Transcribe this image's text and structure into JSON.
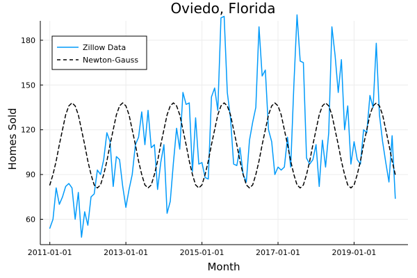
{
  "chart_data": {
    "type": "line",
    "title": "Oviedo, Florida",
    "xlabel": "Month",
    "ylabel": "Homes Sold",
    "xlim": [
      "2010-10-01",
      "2020-06-01"
    ],
    "ylim": [
      43,
      193
    ],
    "xticks": [
      {
        "value": "2011-01-01",
        "label": "2011-01-01"
      },
      {
        "value": "2013-01-01",
        "label": "2013-01-01"
      },
      {
        "value": "2015-01-01",
        "label": "2015-01-01"
      },
      {
        "value": "2017-01-01",
        "label": "2017-01-01"
      },
      {
        "value": "2019-01-01",
        "label": "2019-01-01"
      }
    ],
    "yticks": [
      {
        "value": 60,
        "label": "60"
      },
      {
        "value": 90,
        "label": "90"
      },
      {
        "value": 120,
        "label": "120"
      },
      {
        "value": 150,
        "label": "150"
      },
      {
        "value": 180,
        "label": "180"
      }
    ],
    "grid": true,
    "legend_position": "top-left",
    "start_month": "2011-01",
    "series": [
      {
        "name": "Zillow Data",
        "color": "#009AFA",
        "style": "solid",
        "values": [
          54,
          60,
          81,
          70,
          75,
          82,
          84,
          81,
          60,
          78,
          48,
          65,
          56,
          75,
          77,
          93,
          90,
          100,
          118,
          112,
          82,
          102,
          100,
          82,
          68,
          80,
          90,
          110,
          115,
          132,
          110,
          133,
          108,
          110,
          80,
          98,
          110,
          64,
          72,
          98,
          121,
          107,
          145,
          137,
          138,
          92,
          128,
          97,
          98,
          88,
          87,
          142,
          148,
          133,
          195,
          196,
          145,
          128,
          97,
          96,
          108,
          90,
          85,
          113,
          125,
          135,
          189,
          156,
          160,
          120,
          112,
          90,
          95,
          93,
          95,
          115,
          95,
          150,
          197,
          166,
          165,
          101,
          97,
          100,
          110,
          82,
          113,
          95,
          118,
          189,
          170,
          145,
          167,
          120,
          136,
          97,
          112,
          100,
          97,
          120,
          118,
          143,
          135,
          178,
          130,
          112,
          98,
          85,
          116,
          74
        ]
      },
      {
        "name": "Newton-Gauss",
        "color": "#000000",
        "style": "dashed",
        "values": [
          83,
          90,
          99,
          110,
          120,
          130,
          136,
          138,
          136,
          130,
          120,
          110,
          99,
          90,
          83,
          81,
          83,
          90,
          99,
          110,
          120,
          130,
          136,
          138,
          136,
          130,
          120,
          110,
          99,
          90,
          83,
          81,
          83,
          90,
          99,
          110,
          120,
          130,
          136,
          138,
          136,
          130,
          120,
          110,
          99,
          90,
          83,
          81,
          83,
          90,
          99,
          110,
          120,
          130,
          136,
          138,
          136,
          130,
          120,
          110,
          99,
          90,
          83,
          81,
          83,
          90,
          99,
          110,
          120,
          130,
          136,
          138,
          136,
          130,
          120,
          110,
          99,
          90,
          83,
          81,
          83,
          90,
          99,
          110,
          120,
          130,
          136,
          138,
          136,
          130,
          120,
          110,
          99,
          90,
          83,
          81,
          83,
          90,
          99,
          110,
          120,
          130,
          136,
          138,
          136,
          130,
          120,
          110,
          99,
          90
        ]
      }
    ]
  }
}
